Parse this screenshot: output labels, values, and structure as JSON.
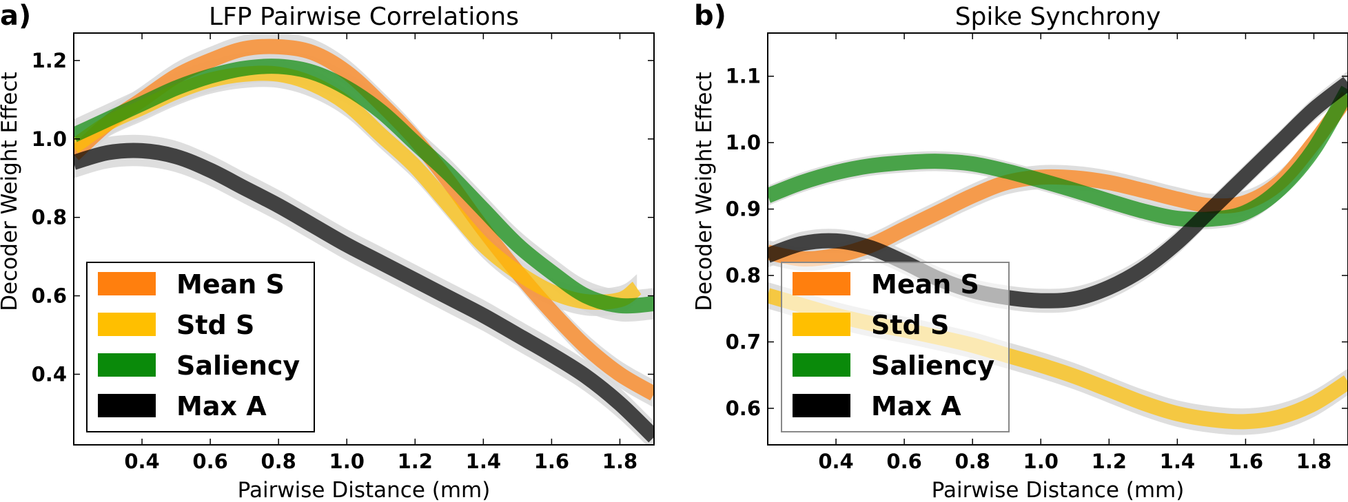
{
  "chart_data": [
    {
      "panel_label": "a)",
      "type": "line",
      "title": "LFP Pairwise Correlations",
      "xlabel": "Pairwise Distance (mm)",
      "ylabel": "Decoder Weight Effect",
      "xlim": [
        0.2,
        1.9
      ],
      "ylim": [
        0.22,
        1.27
      ],
      "xticks": [
        0.4,
        0.6,
        0.8,
        1.0,
        1.2,
        1.4,
        1.6,
        1.8
      ],
      "xtick_labels": [
        "0.4",
        "0.6",
        "0.8",
        "1.0",
        "1.2",
        "1.4",
        "1.6",
        "1.8"
      ],
      "yticks": [
        0.4,
        0.6,
        0.8,
        1.0,
        1.2
      ],
      "ytick_labels": [
        "0.4",
        "0.6",
        "0.8",
        "1.0",
        "1.2"
      ],
      "grid": false,
      "legend_position": "bottom-left",
      "legend_frame": "#000000",
      "band_color": "#d8d8d8",
      "series": [
        {
          "name": "Mean S",
          "color": "#ff7f0e",
          "ci": 0.035,
          "points": [
            [
              0.2,
              0.96
            ],
            [
              0.3,
              1.04
            ],
            [
              0.4,
              1.1
            ],
            [
              0.5,
              1.16
            ],
            [
              0.6,
              1.2
            ],
            [
              0.7,
              1.23
            ],
            [
              0.8,
              1.235
            ],
            [
              0.9,
              1.22
            ],
            [
              1.0,
              1.17
            ],
            [
              1.1,
              1.09
            ],
            [
              1.2,
              1.0
            ],
            [
              1.3,
              0.89
            ],
            [
              1.4,
              0.77
            ],
            [
              1.5,
              0.66
            ],
            [
              1.6,
              0.56
            ],
            [
              1.7,
              0.47
            ],
            [
              1.8,
              0.4
            ],
            [
              1.9,
              0.35
            ]
          ]
        },
        {
          "name": "Std S",
          "color": "#ffbf00",
          "ci": 0.035,
          "points": [
            [
              0.2,
              0.98
            ],
            [
              0.3,
              1.04
            ],
            [
              0.4,
              1.08
            ],
            [
              0.5,
              1.12
            ],
            [
              0.6,
              1.15
            ],
            [
              0.7,
              1.165
            ],
            [
              0.8,
              1.165
            ],
            [
              0.9,
              1.14
            ],
            [
              1.0,
              1.09
            ],
            [
              1.1,
              1.01
            ],
            [
              1.2,
              0.93
            ],
            [
              1.3,
              0.83
            ],
            [
              1.4,
              0.73
            ],
            [
              1.5,
              0.66
            ],
            [
              1.6,
              0.61
            ],
            [
              1.7,
              0.585
            ],
            [
              1.8,
              0.59
            ],
            [
              1.85,
              0.62
            ]
          ]
        },
        {
          "name": "Saliency",
          "color": "#0a8a0a",
          "ci": 0.04,
          "points": [
            [
              0.2,
              1.01
            ],
            [
              0.3,
              1.05
            ],
            [
              0.4,
              1.09
            ],
            [
              0.5,
              1.13
            ],
            [
              0.6,
              1.16
            ],
            [
              0.7,
              1.18
            ],
            [
              0.8,
              1.185
            ],
            [
              0.9,
              1.17
            ],
            [
              1.0,
              1.13
            ],
            [
              1.1,
              1.07
            ],
            [
              1.2,
              0.99
            ],
            [
              1.3,
              0.91
            ],
            [
              1.4,
              0.82
            ],
            [
              1.5,
              0.73
            ],
            [
              1.6,
              0.66
            ],
            [
              1.7,
              0.6
            ],
            [
              1.8,
              0.575
            ],
            [
              1.9,
              0.58
            ]
          ]
        },
        {
          "name": "Max A",
          "color": "#000000",
          "ci": 0.04,
          "points": [
            [
              0.2,
              0.94
            ],
            [
              0.3,
              0.965
            ],
            [
              0.4,
              0.97
            ],
            [
              0.5,
              0.955
            ],
            [
              0.6,
              0.92
            ],
            [
              0.7,
              0.875
            ],
            [
              0.8,
              0.83
            ],
            [
              0.9,
              0.78
            ],
            [
              1.0,
              0.73
            ],
            [
              1.1,
              0.685
            ],
            [
              1.2,
              0.64
            ],
            [
              1.3,
              0.595
            ],
            [
              1.4,
              0.55
            ],
            [
              1.5,
              0.5
            ],
            [
              1.6,
              0.45
            ],
            [
              1.7,
              0.395
            ],
            [
              1.8,
              0.325
            ],
            [
              1.9,
              0.24
            ]
          ]
        }
      ]
    },
    {
      "panel_label": "b)",
      "type": "line",
      "title": "Spike Synchrony",
      "xlabel": "Pairwise Distance (mm)",
      "ylabel": "Decoder Weight Effect",
      "xlim": [
        0.2,
        1.9
      ],
      "ylim": [
        0.545,
        1.165
      ],
      "xticks": [
        0.4,
        0.6,
        0.8,
        1.0,
        1.2,
        1.4,
        1.6,
        1.8
      ],
      "xtick_labels": [
        "0.4",
        "0.6",
        "0.8",
        "1.0",
        "1.2",
        "1.4",
        "1.6",
        "1.8"
      ],
      "yticks": [
        0.6,
        0.7,
        0.8,
        0.9,
        1.0,
        1.1
      ],
      "ytick_labels": [
        "0.6",
        "0.7",
        "0.8",
        "0.9",
        "1.0",
        "1.1"
      ],
      "grid": false,
      "legend_position": "bottom-left",
      "legend_frame": "#888888",
      "band_color": "#d8d8d8",
      "series": [
        {
          "name": "Mean S",
          "color": "#ff7f0e",
          "ci": 0.018,
          "points": [
            [
              0.2,
              0.835
            ],
            [
              0.3,
              0.825
            ],
            [
              0.4,
              0.83
            ],
            [
              0.5,
              0.845
            ],
            [
              0.6,
              0.87
            ],
            [
              0.7,
              0.895
            ],
            [
              0.8,
              0.92
            ],
            [
              0.9,
              0.94
            ],
            [
              1.0,
              0.948
            ],
            [
              1.1,
              0.947
            ],
            [
              1.2,
              0.94
            ],
            [
              1.3,
              0.928
            ],
            [
              1.4,
              0.915
            ],
            [
              1.5,
              0.905
            ],
            [
              1.6,
              0.91
            ],
            [
              1.7,
              0.94
            ],
            [
              1.8,
              1.0
            ],
            [
              1.9,
              1.07
            ]
          ]
        },
        {
          "name": "Std S",
          "color": "#ffbf00",
          "ci": 0.02,
          "points": [
            [
              0.2,
              0.77
            ],
            [
              0.3,
              0.755
            ],
            [
              0.4,
              0.74
            ],
            [
              0.5,
              0.728
            ],
            [
              0.6,
              0.718
            ],
            [
              0.7,
              0.707
            ],
            [
              0.8,
              0.695
            ],
            [
              0.9,
              0.68
            ],
            [
              1.0,
              0.665
            ],
            [
              1.1,
              0.648
            ],
            [
              1.2,
              0.628
            ],
            [
              1.3,
              0.608
            ],
            [
              1.4,
              0.592
            ],
            [
              1.5,
              0.583
            ],
            [
              1.6,
              0.58
            ],
            [
              1.7,
              0.587
            ],
            [
              1.8,
              0.607
            ],
            [
              1.9,
              0.64
            ]
          ]
        },
        {
          "name": "Saliency",
          "color": "#0a8a0a",
          "ci": 0.015,
          "points": [
            [
              0.2,
              0.92
            ],
            [
              0.3,
              0.94
            ],
            [
              0.4,
              0.955
            ],
            [
              0.5,
              0.965
            ],
            [
              0.6,
              0.97
            ],
            [
              0.7,
              0.972
            ],
            [
              0.8,
              0.968
            ],
            [
              0.9,
              0.957
            ],
            [
              1.0,
              0.943
            ],
            [
              1.1,
              0.928
            ],
            [
              1.2,
              0.912
            ],
            [
              1.3,
              0.897
            ],
            [
              1.4,
              0.886
            ],
            [
              1.5,
              0.885
            ],
            [
              1.6,
              0.895
            ],
            [
              1.7,
              0.93
            ],
            [
              1.8,
              0.99
            ],
            [
              1.9,
              1.08
            ]
          ]
        },
        {
          "name": "Max A",
          "color": "#000000",
          "ci": 0.018,
          "points": [
            [
              0.2,
              0.83
            ],
            [
              0.3,
              0.848
            ],
            [
              0.4,
              0.852
            ],
            [
              0.5,
              0.842
            ],
            [
              0.6,
              0.82
            ],
            [
              0.7,
              0.795
            ],
            [
              0.8,
              0.777
            ],
            [
              0.9,
              0.767
            ],
            [
              1.0,
              0.762
            ],
            [
              1.1,
              0.765
            ],
            [
              1.2,
              0.782
            ],
            [
              1.3,
              0.81
            ],
            [
              1.4,
              0.85
            ],
            [
              1.5,
              0.9
            ],
            [
              1.6,
              0.95
            ],
            [
              1.7,
              1.0
            ],
            [
              1.8,
              1.05
            ],
            [
              1.9,
              1.09
            ]
          ]
        }
      ]
    }
  ]
}
